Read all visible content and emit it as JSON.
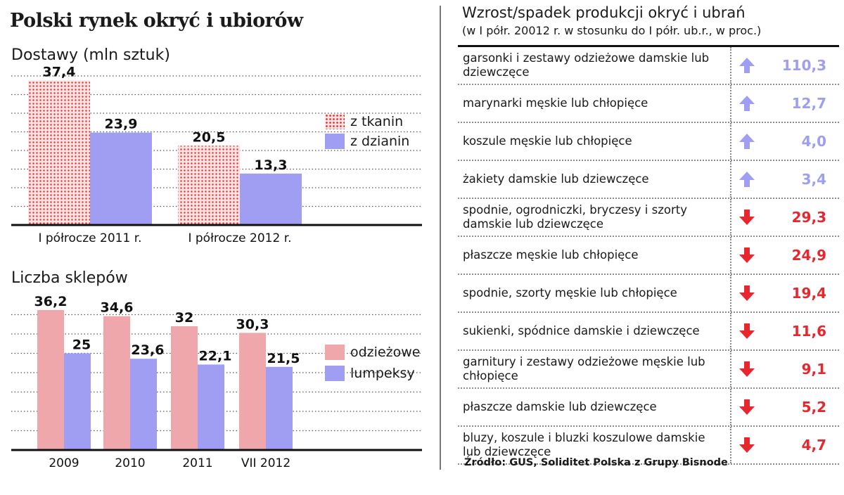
{
  "main_title": "Polski rynek okryć i ubiorów",
  "colors": {
    "tkanin": "#e03030",
    "dzianin": "#9f9ef2",
    "odziezowe": "#f0a7ab",
    "lumpeksy": "#9f9ef2",
    "increase": "#9f9ef2",
    "decrease": "#e8262d"
  },
  "chart_data": [
    {
      "type": "bar",
      "title": "Dostawy (mln sztuk)",
      "categories": [
        "I półrocze 2011 r.",
        "I półrocze 2012 r."
      ],
      "series": [
        {
          "name": "z tkanin",
          "values": [
            37.4,
            20.5
          ],
          "labels": [
            "37,4",
            "20,5"
          ]
        },
        {
          "name": "z dzianin",
          "values": [
            23.9,
            13.3
          ],
          "labels": [
            "23,9",
            "13,3"
          ]
        }
      ],
      "ylim": [
        0,
        40
      ],
      "grid": true,
      "legend": "right"
    },
    {
      "type": "bar",
      "title": "Liczba sklepów",
      "categories": [
        "2009",
        "2010",
        "2011",
        "VII 2012"
      ],
      "series": [
        {
          "name": "odzieżowe",
          "values": [
            36.2,
            34.6,
            32,
            30.3
          ],
          "labels": [
            "36,2",
            "34,6",
            "32",
            "30,3"
          ]
        },
        {
          "name": "lumpeksy",
          "values": [
            25,
            23.6,
            22.1,
            21.5
          ],
          "labels": [
            "25",
            "23,6",
            "22,1",
            "21,5"
          ]
        }
      ],
      "ylim": [
        0,
        40
      ],
      "grid": true,
      "legend": "right"
    },
    {
      "type": "table",
      "title": "Wzrost/spadek produkcji okryć i ubrań",
      "subtitle": "(w I półr. 20012 r. w stosunku do I półr. ub.r., w proc.)",
      "rows": [
        {
          "label": "garsonki i zestawy odzieżowe damskie lub dziewczęce",
          "direction": "up",
          "value": "110,3",
          "icon": "arrow-up-icon"
        },
        {
          "label": "marynarki męskie lub chłopięce",
          "direction": "up",
          "value": "12,7",
          "icon": "arrow-up-icon"
        },
        {
          "label": "koszule męskie lub chłopięce",
          "direction": "up",
          "value": "4,0",
          "icon": "arrow-up-icon"
        },
        {
          "label": "żakiety damskie lub dziewczęce",
          "direction": "up",
          "value": "3,4",
          "icon": "arrow-up-icon"
        },
        {
          "label": "spodnie, ogrodniczki, bryczesy i szorty damskie lub dziewczęce",
          "direction": "down",
          "value": "29,3",
          "icon": "arrow-down-icon"
        },
        {
          "label": "płaszcze męskie lub chłopięce",
          "direction": "down",
          "value": "24,9",
          "icon": "arrow-down-icon"
        },
        {
          "label": "spodnie, szorty męskie lub chłopięce",
          "direction": "down",
          "value": "19,4",
          "icon": "arrow-down-icon"
        },
        {
          "label": "sukienki, spódnice damskie i dziewczęce",
          "direction": "down",
          "value": "11,6",
          "icon": "arrow-down-icon"
        },
        {
          "label": "garnitury i zestawy odzieżowe męskie lub chłopięce",
          "direction": "down",
          "value": "9,1",
          "icon": "arrow-down-icon"
        },
        {
          "label": "płaszcze damskie lub dziewczęce",
          "direction": "down",
          "value": "5,2",
          "icon": "arrow-down-icon"
        },
        {
          "label": "bluzy, koszule i bluzki koszulowe damskie lub dziewczęce",
          "direction": "down",
          "value": "4,7",
          "icon": "arrow-down-icon"
        }
      ]
    }
  ],
  "source": "Źródło: GUS, Soliditet Polska z Grupy Bisnode"
}
